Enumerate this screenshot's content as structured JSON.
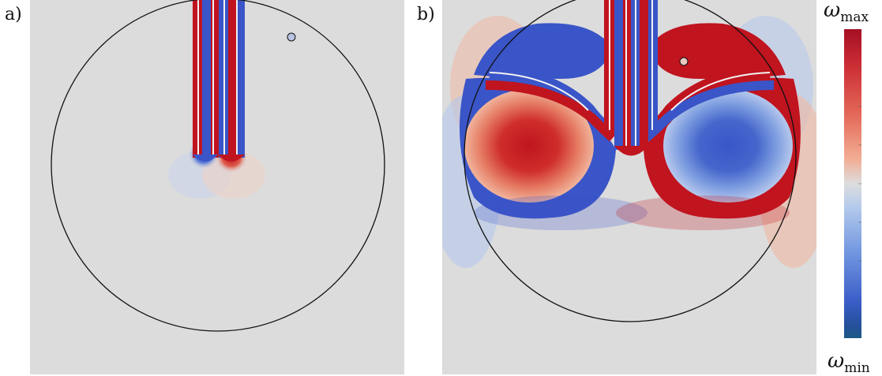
{
  "panels": [
    {
      "label": "a)"
    },
    {
      "label": "b)"
    }
  ],
  "colorbar": {
    "max_symbol": "ω",
    "max_sub": "max",
    "min_symbol": "ω",
    "min_sub": "min",
    "colormap": [
      "#b2182b",
      "#d6604d",
      "#f4a582",
      "#dddddd",
      "#92c5de",
      "#4393c3",
      "#2166ac",
      "#1a4f8a"
    ]
  },
  "colors": {
    "background_field": "#dddddd",
    "positive_vorticity": "#c0141f",
    "negative_vorticity": "#3a55c8",
    "boundary_line": "#111111"
  }
}
